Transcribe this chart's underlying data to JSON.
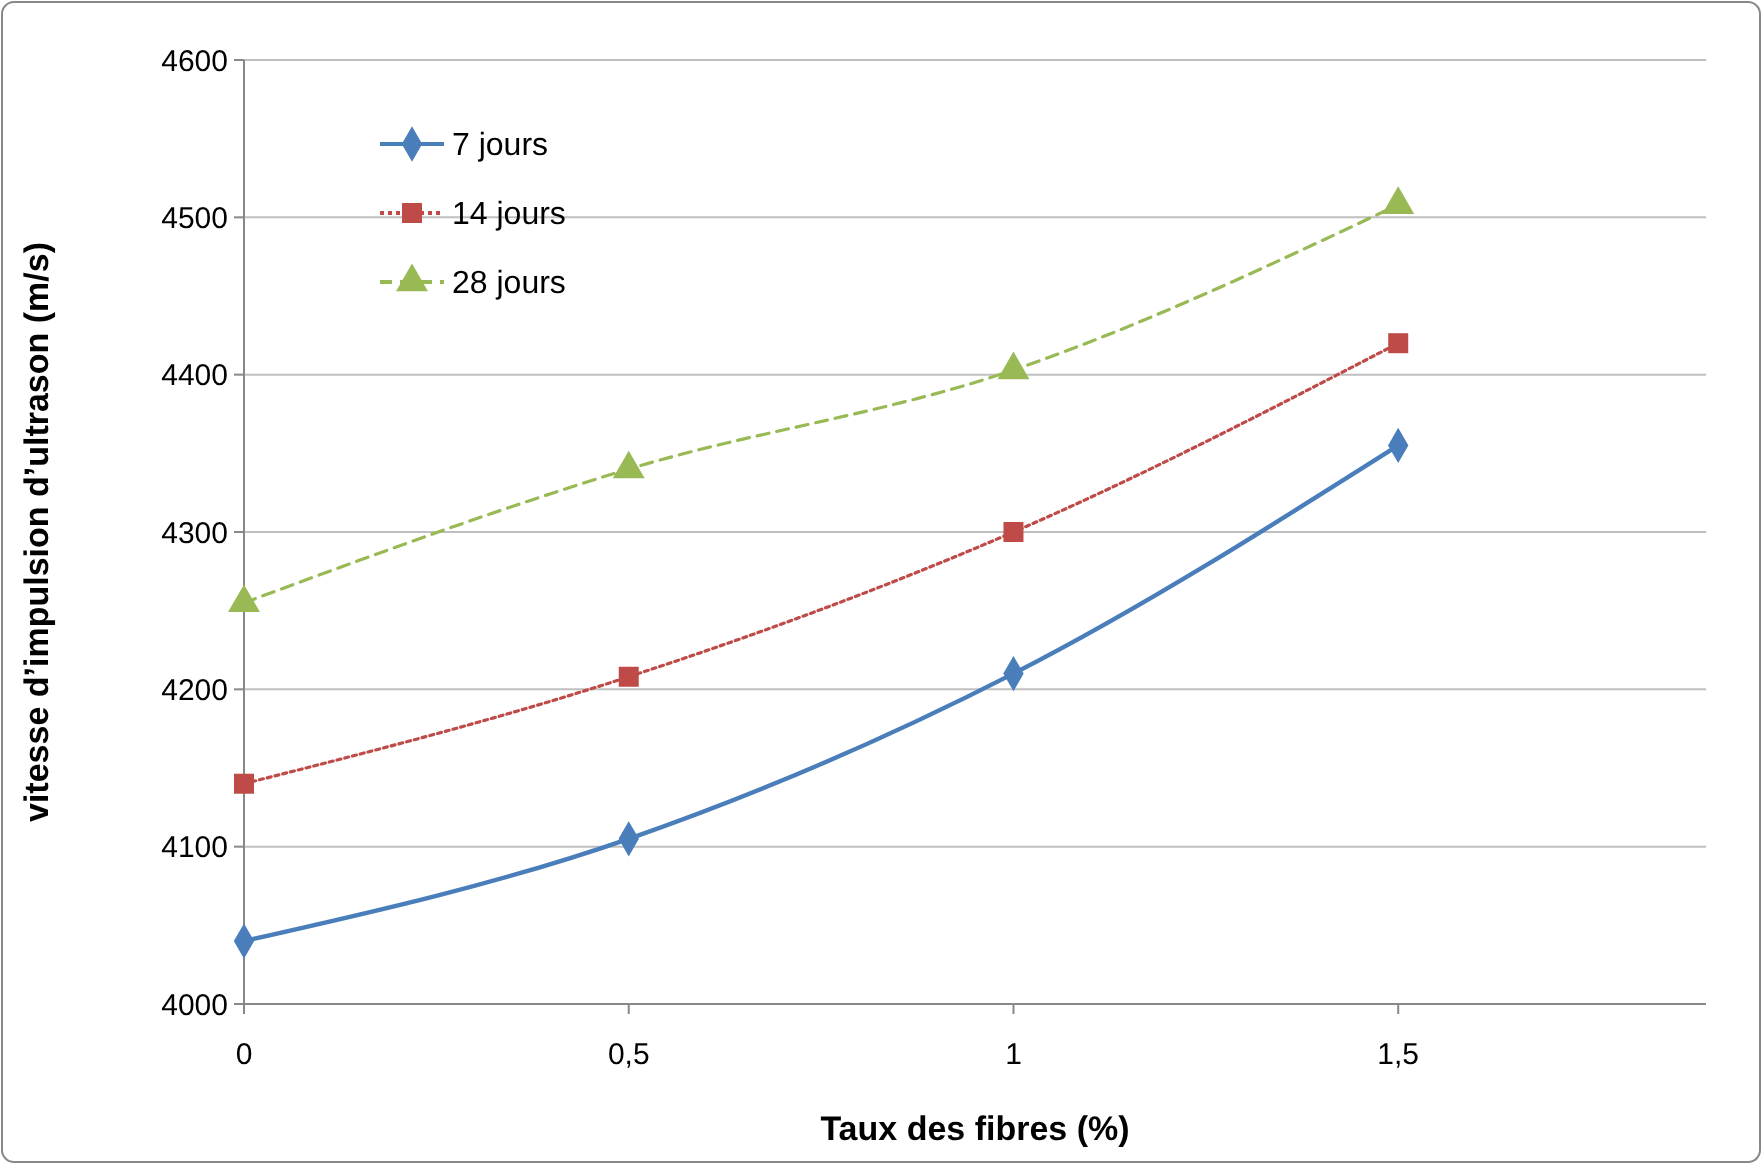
{
  "chart_data": {
    "type": "line",
    "xlabel": "Taux des fibres (%)",
    "ylabel": "vitesse d’impulsion d’ultrason (m/s)",
    "categories": [
      "0",
      "0,5",
      "1",
      "1,5"
    ],
    "ylim": [
      4000,
      4600
    ],
    "yticks": [
      4000,
      4100,
      4200,
      4300,
      4400,
      4500,
      4600
    ],
    "grid": "y",
    "legend": "top left",
    "series": [
      {
        "name": "7 jours",
        "color": "#4a7ebb",
        "values": [
          4040,
          4105,
          4210,
          4355
        ],
        "marker": "diamond",
        "line_style": "solid"
      },
      {
        "name": "14 jours",
        "color": "#be4b48",
        "values": [
          4140,
          4208,
          4300,
          4420
        ],
        "marker": "square",
        "line_style": "dotted"
      },
      {
        "name": "28 jours",
        "color": "#98b954",
        "values": [
          4255,
          4340,
          4403,
          4508
        ],
        "marker": "triangle",
        "line_style": "dashed"
      }
    ]
  }
}
